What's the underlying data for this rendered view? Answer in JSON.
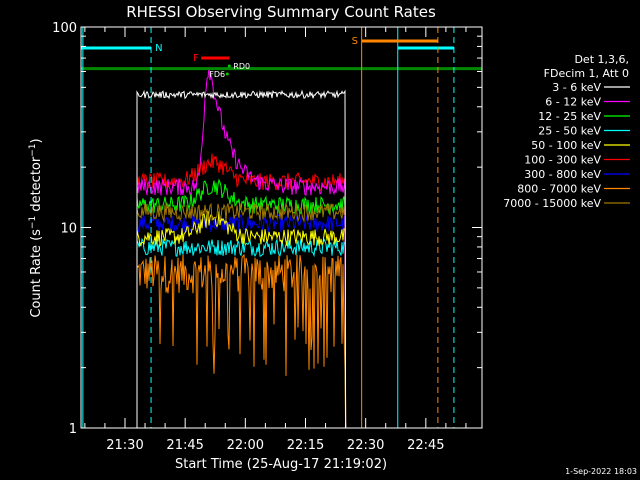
{
  "chart_data": {
    "type": "line",
    "title": "RHESSI Observing Summary Count Rates",
    "xlabel": "Start Time (25-Aug-17 21:19:02)",
    "ylabel": "Count Rate (s⁻¹ detector⁻¹)",
    "ylabel_main": "Count Rate (s",
    "ylabel_sup1": "−1",
    "ylabel_mid": " detector",
    "ylabel_sup2": "−1",
    "ylabel_end": ")",
    "x_start": "21:19:02",
    "x_end": "22:59:00",
    "x_ticks": [
      "21:30",
      "21:45",
      "22:00",
      "22:15",
      "22:30",
      "22:45"
    ],
    "y_scale": "log",
    "ylim": [
      1,
      100
    ],
    "y_ticks": [
      "1",
      "10",
      "100"
    ],
    "legend_header": [
      "Det 1,3,6,",
      "FDecim 1, Att 0"
    ],
    "series": [
      {
        "name": "3 - 6 keV",
        "color": "#ffffff",
        "level": 46
      },
      {
        "name": "6 - 12 keV",
        "color": "#ff00ff",
        "level": 16,
        "peak": 63,
        "peak_time": "21:51"
      },
      {
        "name": "12 - 25 keV",
        "color": "#00ff00",
        "level": 13
      },
      {
        "name": "25 - 50 keV",
        "color": "#00ffff",
        "level": 8
      },
      {
        "name": "50 - 100 keV",
        "color": "#ffff00",
        "level": 9
      },
      {
        "name": "100 - 300 keV",
        "color": "#ff0000",
        "level": 17
      },
      {
        "name": "300 - 800 keV",
        "color": "#0000ff",
        "level": 10.5
      },
      {
        "name": "800 - 7000 keV",
        "color": "#ff8800",
        "level": 6
      },
      {
        "name": "7000 - 15000 keV",
        "color": "#a07800",
        "level": 12
      }
    ],
    "flags": {
      "night": {
        "label": "N",
        "color": "#00ffff",
        "bars": [
          [
            "21:19:02",
            "21:36:30"
          ],
          [
            "22:38",
            "22:52"
          ]
        ],
        "boundaries": [
          "21:19:30",
          "22:38"
        ],
        "dashed": [
          "21:36:30",
          "22:52"
        ]
      },
      "saa": {
        "label": "S",
        "color": "#ff8800",
        "bars": [
          [
            "22:29",
            "22:48"
          ]
        ],
        "boundaries": [
          "22:29"
        ],
        "dashed": [
          "22:48"
        ]
      },
      "flare": {
        "label": "F",
        "color": "#ff0000",
        "bars": [
          [
            "21:49",
            "21:56"
          ]
        ]
      },
      "attenuator_bar": {
        "color": "#008800",
        "level": 62
      },
      "decimation_labels": [
        "RD0",
        "FD6"
      ]
    },
    "data_window": [
      "21:33",
      "22:25"
    ]
  },
  "timestamp": "1-Sep-2022 18:03"
}
